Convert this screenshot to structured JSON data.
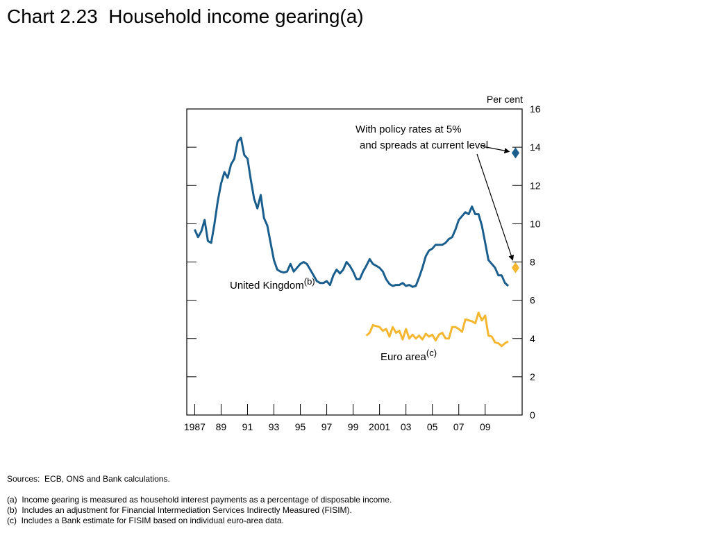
{
  "page": {
    "title": "Chart 2.23  Household income gearing(a)"
  },
  "notes": {
    "sources": "Sources:  ECB, ONS and Bank calculations.",
    "footnotes": [
      "(a)  Income gearing is measured as household interest payments as a percentage of disposable income.",
      "(b)  Includes an adjustment for Financial Intermediation Services Indirectly Measured (FISIM).",
      "(c)  Includes a Bank estimate for FISIM based on individual euro-area data."
    ]
  },
  "chart_data": {
    "type": "line",
    "title": "",
    "xlabel": "",
    "ylabel": "Per cent",
    "ylim": [
      0,
      16
    ],
    "xlim": [
      1986.4,
      2011.8
    ],
    "yticks": [
      0,
      2,
      4,
      6,
      8,
      10,
      12,
      14,
      16
    ],
    "xtick_positions": [
      1987,
      1989,
      1991,
      1993,
      1995,
      1997,
      1999,
      2001,
      2003,
      2005,
      2007,
      2009
    ],
    "xtick_labels": [
      "1987",
      "89",
      "91",
      "93",
      "95",
      "97",
      "99",
      "2001",
      "03",
      "05",
      "07",
      "09"
    ],
    "grid": false,
    "axis_side": "right",
    "series": [
      {
        "name": "United Kingdom",
        "label_sup": "(b)",
        "color": "#1a5e8e",
        "points": [
          [
            1987.0,
            9.7
          ],
          [
            1987.25,
            9.3
          ],
          [
            1987.5,
            9.6
          ],
          [
            1987.75,
            10.2
          ],
          [
            1988.0,
            9.1
          ],
          [
            1988.25,
            9.0
          ],
          [
            1988.5,
            10.0
          ],
          [
            1988.75,
            11.2
          ],
          [
            1989.0,
            12.1
          ],
          [
            1989.25,
            12.7
          ],
          [
            1989.5,
            12.4
          ],
          [
            1989.75,
            13.1
          ],
          [
            1990.0,
            13.4
          ],
          [
            1990.25,
            14.3
          ],
          [
            1990.5,
            14.5
          ],
          [
            1990.75,
            13.6
          ],
          [
            1991.0,
            13.4
          ],
          [
            1991.25,
            12.3
          ],
          [
            1991.5,
            11.3
          ],
          [
            1991.75,
            10.8
          ],
          [
            1992.0,
            11.5
          ],
          [
            1992.25,
            10.3
          ],
          [
            1992.5,
            9.9
          ],
          [
            1992.75,
            9.0
          ],
          [
            1993.0,
            8.1
          ],
          [
            1993.25,
            7.6
          ],
          [
            1993.5,
            7.5
          ],
          [
            1993.75,
            7.45
          ],
          [
            1994.0,
            7.5
          ],
          [
            1994.25,
            7.9
          ],
          [
            1994.5,
            7.5
          ],
          [
            1994.75,
            7.7
          ],
          [
            1995.0,
            7.9
          ],
          [
            1995.25,
            8.0
          ],
          [
            1995.5,
            7.9
          ],
          [
            1995.75,
            7.6
          ],
          [
            1996.0,
            7.3
          ],
          [
            1996.25,
            7.0
          ],
          [
            1996.5,
            6.9
          ],
          [
            1996.75,
            6.9
          ],
          [
            1997.0,
            7.0
          ],
          [
            1997.25,
            6.8
          ],
          [
            1997.5,
            7.3
          ],
          [
            1997.75,
            7.6
          ],
          [
            1998.0,
            7.4
          ],
          [
            1998.25,
            7.6
          ],
          [
            1998.5,
            8.0
          ],
          [
            1998.75,
            7.8
          ],
          [
            1999.0,
            7.5
          ],
          [
            1999.25,
            7.1
          ],
          [
            1999.5,
            7.1
          ],
          [
            1999.75,
            7.5
          ],
          [
            2000.0,
            7.8
          ],
          [
            2000.25,
            8.15
          ],
          [
            2000.5,
            7.9
          ],
          [
            2000.75,
            7.8
          ],
          [
            2001.0,
            7.7
          ],
          [
            2001.25,
            7.5
          ],
          [
            2001.5,
            7.1
          ],
          [
            2001.75,
            6.85
          ],
          [
            2002.0,
            6.75
          ],
          [
            2002.25,
            6.8
          ],
          [
            2002.5,
            6.8
          ],
          [
            2002.75,
            6.9
          ],
          [
            2003.0,
            6.75
          ],
          [
            2003.25,
            6.8
          ],
          [
            2003.5,
            6.7
          ],
          [
            2003.75,
            6.75
          ],
          [
            2004.0,
            7.2
          ],
          [
            2004.25,
            7.7
          ],
          [
            2004.5,
            8.3
          ],
          [
            2004.75,
            8.6
          ],
          [
            2005.0,
            8.7
          ],
          [
            2005.25,
            8.9
          ],
          [
            2005.5,
            8.9
          ],
          [
            2005.75,
            8.9
          ],
          [
            2006.0,
            9.0
          ],
          [
            2006.25,
            9.2
          ],
          [
            2006.5,
            9.3
          ],
          [
            2006.75,
            9.7
          ],
          [
            2007.0,
            10.2
          ],
          [
            2007.25,
            10.4
          ],
          [
            2007.5,
            10.6
          ],
          [
            2007.75,
            10.5
          ],
          [
            2008.0,
            10.9
          ],
          [
            2008.25,
            10.5
          ],
          [
            2008.5,
            10.5
          ],
          [
            2008.75,
            9.9
          ],
          [
            2009.0,
            9.0
          ],
          [
            2009.25,
            8.1
          ],
          [
            2009.5,
            7.9
          ],
          [
            2009.75,
            7.7
          ],
          [
            2010.0,
            7.3
          ],
          [
            2010.25,
            7.3
          ],
          [
            2010.5,
            6.9
          ],
          [
            2010.75,
            6.75
          ]
        ]
      },
      {
        "name": "Euro area",
        "label_sup": "(c)",
        "color": "#f5b731",
        "points": [
          [
            2000.0,
            4.15
          ],
          [
            2000.25,
            4.3
          ],
          [
            2000.5,
            4.7
          ],
          [
            2000.75,
            4.65
          ],
          [
            2001.0,
            4.6
          ],
          [
            2001.25,
            4.4
          ],
          [
            2001.5,
            4.5
          ],
          [
            2001.75,
            4.1
          ],
          [
            2002.0,
            4.6
          ],
          [
            2002.25,
            4.3
          ],
          [
            2002.5,
            4.4
          ],
          [
            2002.75,
            3.95
          ],
          [
            2003.0,
            4.5
          ],
          [
            2003.25,
            4.0
          ],
          [
            2003.5,
            4.2
          ],
          [
            2003.75,
            4.0
          ],
          [
            2004.0,
            4.15
          ],
          [
            2004.25,
            3.95
          ],
          [
            2004.5,
            4.25
          ],
          [
            2004.75,
            4.1
          ],
          [
            2005.0,
            4.2
          ],
          [
            2005.25,
            3.9
          ],
          [
            2005.5,
            4.2
          ],
          [
            2005.75,
            4.3
          ],
          [
            2006.0,
            4.0
          ],
          [
            2006.25,
            4.0
          ],
          [
            2006.5,
            4.6
          ],
          [
            2006.75,
            4.6
          ],
          [
            2007.0,
            4.5
          ],
          [
            2007.25,
            4.35
          ],
          [
            2007.5,
            5.0
          ],
          [
            2007.75,
            4.95
          ],
          [
            2008.0,
            4.9
          ],
          [
            2008.25,
            4.8
          ],
          [
            2008.5,
            5.35
          ],
          [
            2008.75,
            4.95
          ],
          [
            2009.0,
            5.2
          ],
          [
            2009.25,
            4.15
          ],
          [
            2009.5,
            4.1
          ],
          [
            2009.75,
            3.8
          ],
          [
            2010.0,
            3.75
          ],
          [
            2010.25,
            3.6
          ],
          [
            2010.5,
            3.75
          ],
          [
            2010.75,
            3.85
          ]
        ]
      }
    ],
    "markers": [
      {
        "x": 2011.3,
        "y": 13.7,
        "color": "#1a5e8e",
        "shape": "diamond"
      },
      {
        "x": 2011.3,
        "y": 7.7,
        "color": "#f5b731",
        "shape": "diamond"
      }
    ],
    "annotation": {
      "lines": [
        "With policy rates at 5%",
        "and spreads at current level"
      ]
    }
  }
}
